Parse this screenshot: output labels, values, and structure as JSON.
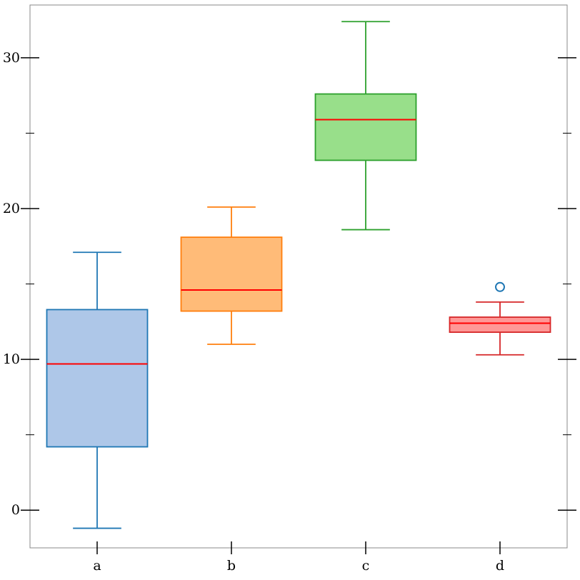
{
  "chart_data": {
    "type": "box",
    "title": "",
    "xlabel": "",
    "ylabel": "",
    "categories": [
      "a",
      "b",
      "c",
      "d"
    ],
    "ylim": [
      -2.5,
      33.5
    ],
    "yticks_major": [
      0,
      10,
      20,
      30
    ],
    "yticks_minor": [
      5,
      15,
      25
    ],
    "grid": false,
    "boxes": [
      {
        "name": "a",
        "whisker_low": -1.2,
        "q1": 4.2,
        "median": 9.7,
        "q3": 13.3,
        "whisker_high": 17.1,
        "outliers": [],
        "fill": "#aec7e8",
        "stroke": "#1f77b4"
      },
      {
        "name": "b",
        "whisker_low": 11.0,
        "q1": 13.2,
        "median": 14.6,
        "q3": 18.1,
        "whisker_high": 20.1,
        "outliers": [],
        "fill": "#ffbb78",
        "stroke": "#ff7f0e"
      },
      {
        "name": "c",
        "whisker_low": 18.6,
        "q1": 23.2,
        "median": 25.9,
        "q3": 27.6,
        "whisker_high": 32.4,
        "outliers": [],
        "fill": "#98df8a",
        "stroke": "#2ca02c"
      },
      {
        "name": "d",
        "whisker_low": 10.3,
        "q1": 11.8,
        "median": 12.4,
        "q3": 12.8,
        "whisker_high": 13.8,
        "outliers": [
          14.8
        ],
        "fill": "#ff9896",
        "stroke": "#d62728"
      }
    ],
    "median_color": "#ff0000",
    "outlier_color": "#1f77b4"
  }
}
